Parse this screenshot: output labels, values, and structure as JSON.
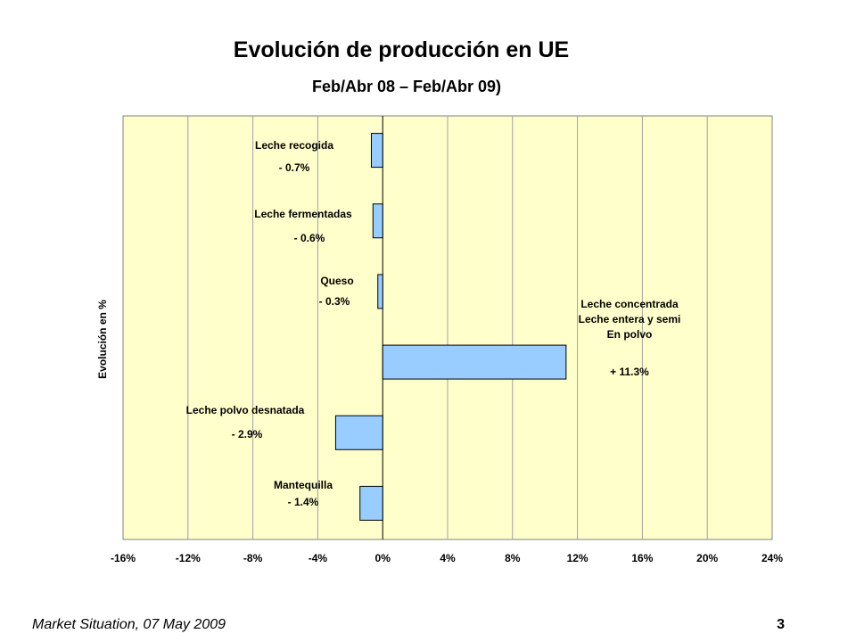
{
  "header": {
    "title": "Evolución de producción en UE",
    "subtitle": "Feb/Abr 08 – Feb/Abr 09)"
  },
  "footer": {
    "source_text": "Market Situation, 07 May 2009",
    "page_number": "3"
  },
  "chart_data": {
    "type": "bar",
    "orientation": "horizontal",
    "title": "Evolución de producción en UE",
    "subtitle": "Feb/Abr 08 – Feb/Abr 09)",
    "ylabel": "Evolución en %",
    "xlabel": "",
    "xlim": [
      -16,
      24
    ],
    "x_ticks": [
      -16,
      -12,
      -8,
      -4,
      0,
      4,
      8,
      12,
      16,
      20,
      24
    ],
    "x_tick_labels": [
      "-16%",
      "-12%",
      "-8%",
      "-4%",
      "0%",
      "4%",
      "8%",
      "12%",
      "16%",
      "20%",
      "24%"
    ],
    "grid": true,
    "legend": "none",
    "colors": {
      "plot_background": "#FFFFCC",
      "bar_fill": "#99CCFF",
      "bar_stroke": "#000000",
      "gridline": "#A0A0A0"
    },
    "categories": [
      [
        "Leche recogida"
      ],
      [
        "Leche fermentadas"
      ],
      [
        "Queso"
      ],
      [
        "Leche concentrada",
        "Leche entera y semi",
        "En polvo"
      ],
      [
        "Leche polvo desnatada"
      ],
      [
        "Mantequilla"
      ]
    ],
    "values": [
      -0.7,
      -0.6,
      -0.3,
      11.3,
      -2.9,
      -1.4
    ],
    "value_labels": [
      "- 0.7%",
      "- 0.6%",
      "- 0.3%",
      "+ 11.3%",
      "- 2.9%",
      "- 1.4%"
    ]
  }
}
